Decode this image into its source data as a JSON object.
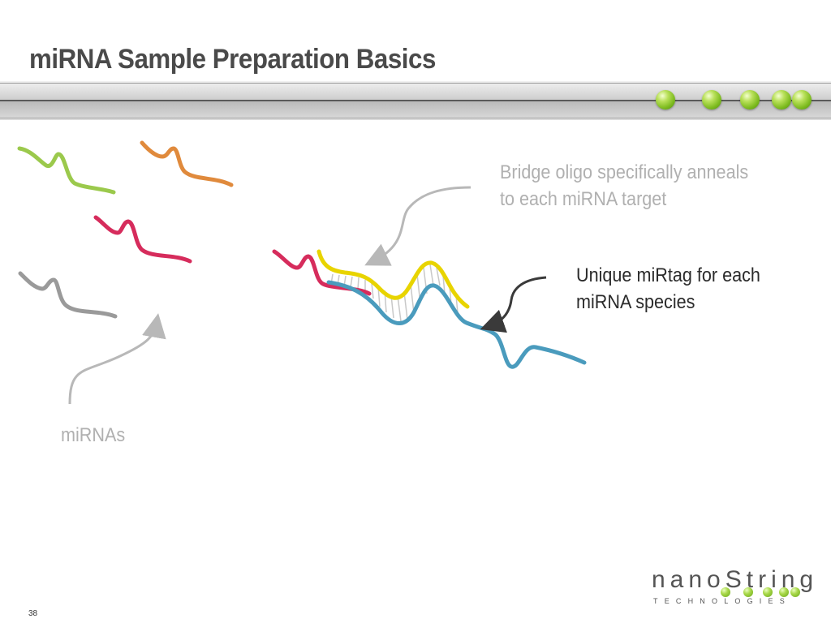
{
  "slide": {
    "title": "miRNA Sample Preparation Basics",
    "page_number": "38"
  },
  "labels": {
    "bridge_line1": "Bridge oligo specifically anneals",
    "bridge_line2": "to each miRNA target",
    "mirtag_line1": "Unique miRtag for each",
    "mirtag_line2": "miRNA species",
    "mirnas": "miRNAs"
  },
  "logo": {
    "name": "nanoString",
    "sub": "TECHNOLOGIES"
  },
  "colors": {
    "title": "#4a4a4a",
    "mirna_green": "#9bc94c",
    "mirna_orange": "#e08a3c",
    "mirna_red": "#d62c5c",
    "mirna_gray": "#9a9a9a",
    "bridge_yellow": "#e8d400",
    "mirtag_blue": "#4a9bbd",
    "accent_dot_green": "#7dbb1f"
  }
}
